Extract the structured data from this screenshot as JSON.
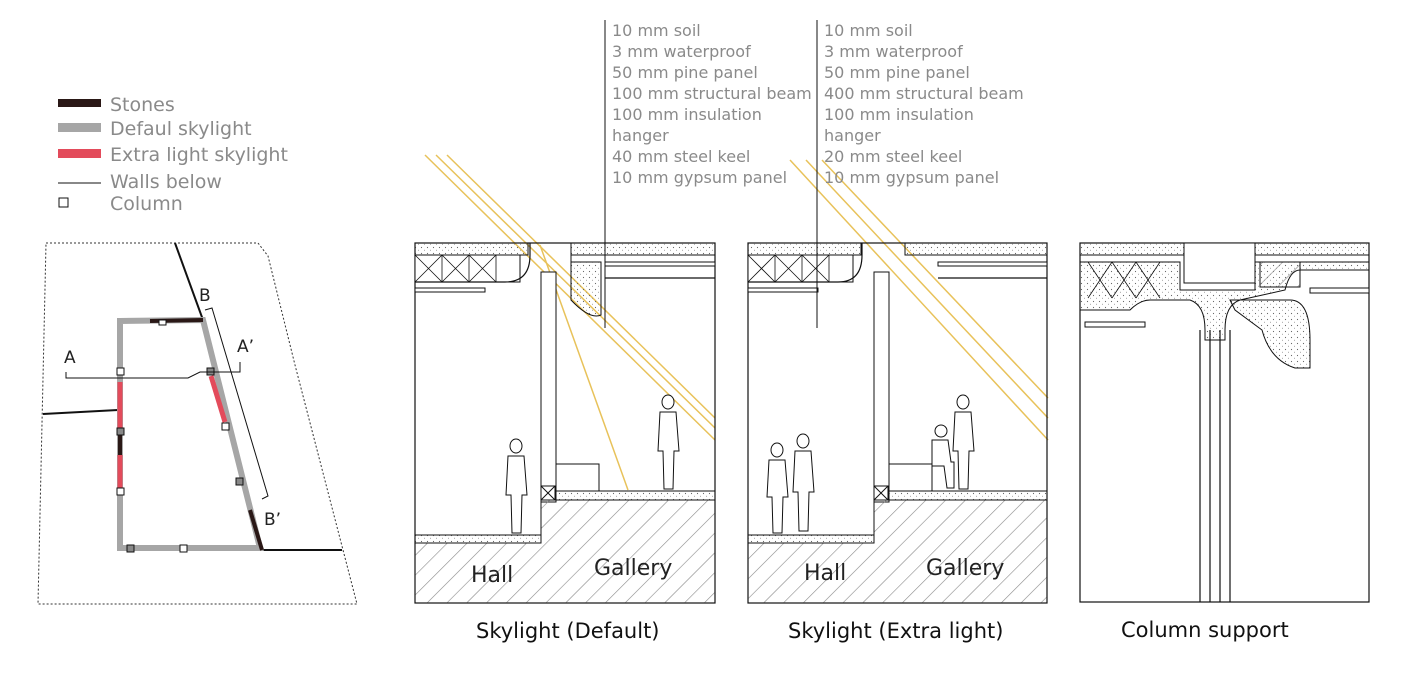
{
  "legend": {
    "stones": "Stones",
    "default_skylight": "Defaul skylight",
    "extra_light_skylight": "Extra light skylight",
    "walls_below": "Walls below",
    "column": "Column"
  },
  "colors": {
    "stones": "#2a1816",
    "default_skylight": "#a6a6a6",
    "extra_light_skylight": "#e34b5b",
    "sunlight": "#e8c25a",
    "line": "#111111",
    "text_gray": "#8a8a8a"
  },
  "plan": {
    "label_a": "A",
    "label_a_prime": "A’",
    "label_b": "B",
    "label_b_prime": "B’"
  },
  "spec_default": {
    "lines": [
      "10 mm soil",
      "3 mm waterproof",
      "50 mm pine panel",
      "100 mm structural beam",
      "100 mm insulation",
      "hanger",
      "40 mm steel keel",
      "10 mm gypsum panel"
    ]
  },
  "spec_extra": {
    "lines": [
      "10 mm soil",
      "3 mm waterproof",
      "50 mm pine panel",
      "400 mm structural beam",
      "100 mm insulation",
      "hanger",
      "20 mm steel keel",
      "10 mm gypsum panel"
    ]
  },
  "section_default": {
    "hall_label": "Hall",
    "gallery_label": "Gallery",
    "caption": "Skylight (Default)"
  },
  "section_extra": {
    "hall_label": "Hall",
    "gallery_label": "Gallery",
    "caption": "Skylight (Extra light)"
  },
  "section_column": {
    "caption": "Column support"
  }
}
